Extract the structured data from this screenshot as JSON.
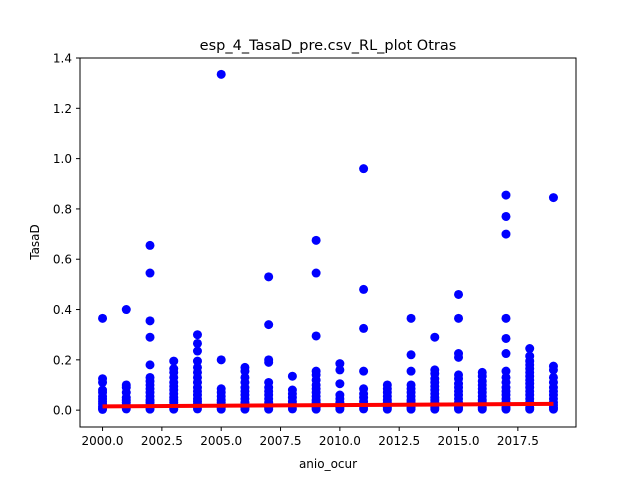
{
  "chart_data": {
    "type": "scatter",
    "title": "esp_4_TasaD_pre.csv_RL_plot Otras",
    "xlabel": "anio_ocur",
    "ylabel": "TasaD",
    "xlim": [
      1999.05,
      2019.95
    ],
    "ylim": [
      -0.067,
      1.4
    ],
    "xticks": [
      2000,
      2002.5,
      2005,
      2007.5,
      2010,
      2012.5,
      2015,
      2017.5
    ],
    "xtick_labels": [
      "2000.0",
      "2002.5",
      "2005.0",
      "2007.5",
      "2010.0",
      "2012.5",
      "2015.0",
      "2017.5"
    ],
    "yticks": [
      0.0,
      0.2,
      0.4,
      0.6,
      0.8,
      1.0,
      1.2,
      1.4
    ],
    "ytick_labels": [
      "0.0",
      "0.2",
      "0.4",
      "0.6",
      "0.8",
      "1.0",
      "1.2",
      "1.4"
    ],
    "grid": false,
    "series": [
      {
        "type": "scatter",
        "color": "#0000ff",
        "points": [
          [
            2000,
            0.365
          ],
          [
            2000,
            0.125
          ],
          [
            2000,
            0.11
          ],
          [
            2000,
            0.08
          ],
          [
            2000,
            0.07
          ],
          [
            2000,
            0.055
          ],
          [
            2000,
            0.045
          ],
          [
            2000,
            0.035
          ],
          [
            2000,
            0.025
          ],
          [
            2000,
            0.015
          ],
          [
            2000,
            0.008
          ],
          [
            2000,
            0.003
          ],
          [
            2001,
            0.4
          ],
          [
            2001,
            0.1
          ],
          [
            2001,
            0.09
          ],
          [
            2001,
            0.07
          ],
          [
            2001,
            0.05
          ],
          [
            2001,
            0.04
          ],
          [
            2001,
            0.03
          ],
          [
            2001,
            0.02
          ],
          [
            2001,
            0.012
          ],
          [
            2001,
            0.005
          ],
          [
            2002,
            0.655
          ],
          [
            2002,
            0.545
          ],
          [
            2002,
            0.355
          ],
          [
            2002,
            0.29
          ],
          [
            2002,
            0.18
          ],
          [
            2002,
            0.13
          ],
          [
            2002,
            0.115
          ],
          [
            2002,
            0.1
          ],
          [
            2002,
            0.085
          ],
          [
            2002,
            0.07
          ],
          [
            2002,
            0.055
          ],
          [
            2002,
            0.04
          ],
          [
            2002,
            0.03
          ],
          [
            2002,
            0.02
          ],
          [
            2002,
            0.01
          ],
          [
            2002,
            0.004
          ],
          [
            2003,
            0.195
          ],
          [
            2003,
            0.165
          ],
          [
            2003,
            0.15
          ],
          [
            2003,
            0.13
          ],
          [
            2003,
            0.11
          ],
          [
            2003,
            0.095
          ],
          [
            2003,
            0.08
          ],
          [
            2003,
            0.065
          ],
          [
            2003,
            0.05
          ],
          [
            2003,
            0.04
          ],
          [
            2003,
            0.03
          ],
          [
            2003,
            0.02
          ],
          [
            2003,
            0.01
          ],
          [
            2003,
            0.004
          ],
          [
            2004,
            0.3
          ],
          [
            2004,
            0.265
          ],
          [
            2004,
            0.235
          ],
          [
            2004,
            0.195
          ],
          [
            2004,
            0.17
          ],
          [
            2004,
            0.15
          ],
          [
            2004,
            0.13
          ],
          [
            2004,
            0.11
          ],
          [
            2004,
            0.09
          ],
          [
            2004,
            0.075
          ],
          [
            2004,
            0.06
          ],
          [
            2004,
            0.045
          ],
          [
            2004,
            0.035
          ],
          [
            2004,
            0.025
          ],
          [
            2004,
            0.015
          ],
          [
            2004,
            0.005
          ],
          [
            2005,
            1.335
          ],
          [
            2005,
            0.2
          ],
          [
            2005,
            0.085
          ],
          [
            2005,
            0.07
          ],
          [
            2005,
            0.055
          ],
          [
            2005,
            0.04
          ],
          [
            2005,
            0.03
          ],
          [
            2005,
            0.02
          ],
          [
            2005,
            0.01
          ],
          [
            2005,
            0.004
          ],
          [
            2006,
            0.17
          ],
          [
            2006,
            0.155
          ],
          [
            2006,
            0.13
          ],
          [
            2006,
            0.11
          ],
          [
            2006,
            0.09
          ],
          [
            2006,
            0.075
          ],
          [
            2006,
            0.06
          ],
          [
            2006,
            0.045
          ],
          [
            2006,
            0.03
          ],
          [
            2006,
            0.02
          ],
          [
            2006,
            0.01
          ],
          [
            2006,
            0.004
          ],
          [
            2007,
            0.53
          ],
          [
            2007,
            0.34
          ],
          [
            2007,
            0.2
          ],
          [
            2007,
            0.19
          ],
          [
            2007,
            0.11
          ],
          [
            2007,
            0.09
          ],
          [
            2007,
            0.075
          ],
          [
            2007,
            0.06
          ],
          [
            2007,
            0.045
          ],
          [
            2007,
            0.03
          ],
          [
            2007,
            0.02
          ],
          [
            2007,
            0.01
          ],
          [
            2007,
            0.004
          ],
          [
            2008,
            0.135
          ],
          [
            2008,
            0.08
          ],
          [
            2008,
            0.065
          ],
          [
            2008,
            0.05
          ],
          [
            2008,
            0.035
          ],
          [
            2008,
            0.025
          ],
          [
            2008,
            0.015
          ],
          [
            2008,
            0.005
          ],
          [
            2009,
            0.675
          ],
          [
            2009,
            0.545
          ],
          [
            2009,
            0.295
          ],
          [
            2009,
            0.155
          ],
          [
            2009,
            0.14
          ],
          [
            2009,
            0.12
          ],
          [
            2009,
            0.1
          ],
          [
            2009,
            0.085
          ],
          [
            2009,
            0.07
          ],
          [
            2009,
            0.055
          ],
          [
            2009,
            0.04
          ],
          [
            2009,
            0.03
          ],
          [
            2009,
            0.02
          ],
          [
            2009,
            0.01
          ],
          [
            2009,
            0.004
          ],
          [
            2010,
            0.185
          ],
          [
            2010,
            0.16
          ],
          [
            2010,
            0.105
          ],
          [
            2010,
            0.06
          ],
          [
            2010,
            0.045
          ],
          [
            2010,
            0.03
          ],
          [
            2010,
            0.02
          ],
          [
            2010,
            0.01
          ],
          [
            2010,
            0.004
          ],
          [
            2011,
            0.96
          ],
          [
            2011,
            0.48
          ],
          [
            2011,
            0.325
          ],
          [
            2011,
            0.155
          ],
          [
            2011,
            0.085
          ],
          [
            2011,
            0.065
          ],
          [
            2011,
            0.05
          ],
          [
            2011,
            0.035
          ],
          [
            2011,
            0.025
          ],
          [
            2011,
            0.015
          ],
          [
            2011,
            0.005
          ],
          [
            2012,
            0.1
          ],
          [
            2012,
            0.085
          ],
          [
            2012,
            0.07
          ],
          [
            2012,
            0.055
          ],
          [
            2012,
            0.04
          ],
          [
            2012,
            0.03
          ],
          [
            2012,
            0.02
          ],
          [
            2012,
            0.01
          ],
          [
            2012,
            0.004
          ],
          [
            2013,
            0.365
          ],
          [
            2013,
            0.22
          ],
          [
            2013,
            0.155
          ],
          [
            2013,
            0.1
          ],
          [
            2013,
            0.085
          ],
          [
            2013,
            0.07
          ],
          [
            2013,
            0.055
          ],
          [
            2013,
            0.04
          ],
          [
            2013,
            0.03
          ],
          [
            2013,
            0.02
          ],
          [
            2013,
            0.01
          ],
          [
            2013,
            0.004
          ],
          [
            2014,
            0.29
          ],
          [
            2014,
            0.16
          ],
          [
            2014,
            0.145
          ],
          [
            2014,
            0.125
          ],
          [
            2014,
            0.11
          ],
          [
            2014,
            0.095
          ],
          [
            2014,
            0.08
          ],
          [
            2014,
            0.065
          ],
          [
            2014,
            0.05
          ],
          [
            2014,
            0.04
          ],
          [
            2014,
            0.03
          ],
          [
            2014,
            0.02
          ],
          [
            2014,
            0.01
          ],
          [
            2014,
            0.004
          ],
          [
            2015,
            0.46
          ],
          [
            2015,
            0.365
          ],
          [
            2015,
            0.225
          ],
          [
            2015,
            0.21
          ],
          [
            2015,
            0.14
          ],
          [
            2015,
            0.125
          ],
          [
            2015,
            0.105
          ],
          [
            2015,
            0.09
          ],
          [
            2015,
            0.075
          ],
          [
            2015,
            0.06
          ],
          [
            2015,
            0.045
          ],
          [
            2015,
            0.03
          ],
          [
            2015,
            0.02
          ],
          [
            2015,
            0.01
          ],
          [
            2015,
            0.004
          ],
          [
            2016,
            0.15
          ],
          [
            2016,
            0.135
          ],
          [
            2016,
            0.115
          ],
          [
            2016,
            0.1
          ],
          [
            2016,
            0.085
          ],
          [
            2016,
            0.07
          ],
          [
            2016,
            0.055
          ],
          [
            2016,
            0.04
          ],
          [
            2016,
            0.03
          ],
          [
            2016,
            0.02
          ],
          [
            2016,
            0.01
          ],
          [
            2016,
            0.004
          ],
          [
            2017,
            0.855
          ],
          [
            2017,
            0.77
          ],
          [
            2017,
            0.7
          ],
          [
            2017,
            0.365
          ],
          [
            2017,
            0.285
          ],
          [
            2017,
            0.225
          ],
          [
            2017,
            0.155
          ],
          [
            2017,
            0.13
          ],
          [
            2017,
            0.11
          ],
          [
            2017,
            0.09
          ],
          [
            2017,
            0.075
          ],
          [
            2017,
            0.06
          ],
          [
            2017,
            0.045
          ],
          [
            2017,
            0.03
          ],
          [
            2017,
            0.02
          ],
          [
            2017,
            0.01
          ],
          [
            2017,
            0.004
          ],
          [
            2018,
            0.245
          ],
          [
            2018,
            0.215
          ],
          [
            2018,
            0.195
          ],
          [
            2018,
            0.18
          ],
          [
            2018,
            0.165
          ],
          [
            2018,
            0.15
          ],
          [
            2018,
            0.135
          ],
          [
            2018,
            0.12
          ],
          [
            2018,
            0.105
          ],
          [
            2018,
            0.09
          ],
          [
            2018,
            0.075
          ],
          [
            2018,
            0.06
          ],
          [
            2018,
            0.045
          ],
          [
            2018,
            0.03
          ],
          [
            2018,
            0.02
          ],
          [
            2018,
            0.01
          ],
          [
            2018,
            0.004
          ],
          [
            2019,
            0.845
          ],
          [
            2019,
            0.175
          ],
          [
            2019,
            0.16
          ],
          [
            2019,
            0.13
          ],
          [
            2019,
            0.11
          ],
          [
            2019,
            0.09
          ],
          [
            2019,
            0.075
          ],
          [
            2019,
            0.06
          ],
          [
            2019,
            0.045
          ],
          [
            2019,
            0.03
          ],
          [
            2019,
            0.02
          ],
          [
            2019,
            0.01
          ],
          [
            2019,
            0.004
          ]
        ]
      },
      {
        "type": "line",
        "color": "#ff0000",
        "x": [
          2000,
          2019
        ],
        "y": [
          0.015,
          0.025
        ]
      }
    ]
  }
}
